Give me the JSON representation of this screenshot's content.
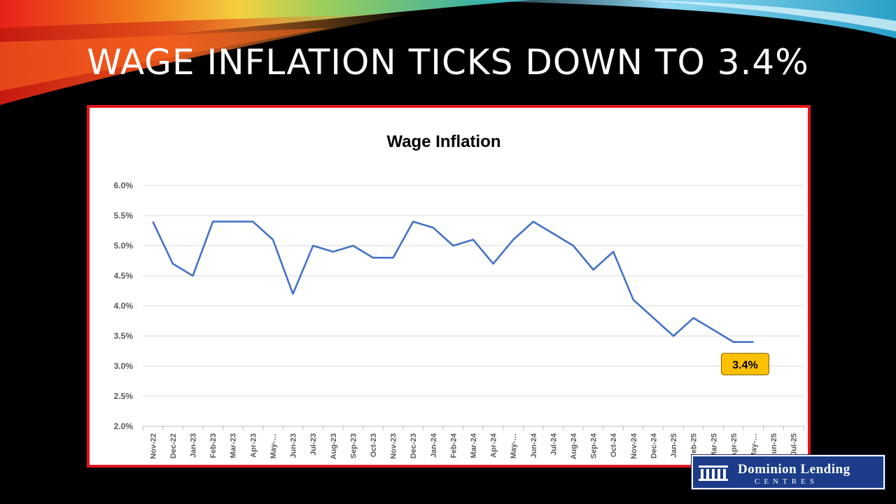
{
  "slide": {
    "title": "WAGE INFLATION TICKS DOWN TO 3.4%"
  },
  "logo": {
    "line1": "Dominion Lending",
    "line2": "CENTRES"
  },
  "colors": {
    "line": "#4472c4",
    "frame": "#e0161b",
    "callout_fill": "#ffc000",
    "grid": "#d9d9d9"
  },
  "chart_data": {
    "type": "line",
    "title": "Wage Inflation",
    "xlabel": "",
    "ylabel": "",
    "ylim": [
      2.0,
      6.0
    ],
    "y_ticks": [
      "2.0%",
      "2.5%",
      "3.0%",
      "3.5%",
      "4.0%",
      "4.5%",
      "5.0%",
      "5.5%",
      "6.0%"
    ],
    "categories": [
      "Nov-22",
      "Dec-22",
      "Jan-23",
      "Feb-23",
      "Mar-23",
      "Apr-23",
      "May-…",
      "Jun-23",
      "Jul-23",
      "Aug-23",
      "Sep-23",
      "Oct-23",
      "Nov-23",
      "Dec-23",
      "Jan-24",
      "Feb-24",
      "Mar-24",
      "Apr-24",
      "May-…",
      "Jun-24",
      "Jul-24",
      "Aug-24",
      "Sep-24",
      "Oct-24",
      "Nov-24",
      "Dec-24",
      "Jan-25",
      "Feb-25",
      "Mar-25",
      "Apr-25",
      "May-…",
      "Jun-25",
      "Jul-25"
    ],
    "values": [
      5.4,
      4.7,
      4.5,
      5.4,
      5.4,
      5.4,
      5.1,
      4.2,
      5.0,
      4.9,
      5.0,
      4.8,
      4.8,
      5.4,
      5.3,
      5.0,
      5.1,
      4.7,
      5.1,
      5.4,
      5.2,
      5.0,
      4.6,
      4.9,
      4.1,
      3.8,
      3.5,
      3.8,
      3.6,
      3.4,
      3.4,
      null,
      null
    ],
    "grid": true,
    "legend": "none",
    "annotation": {
      "category_index": 30,
      "text": "3.4%"
    }
  }
}
